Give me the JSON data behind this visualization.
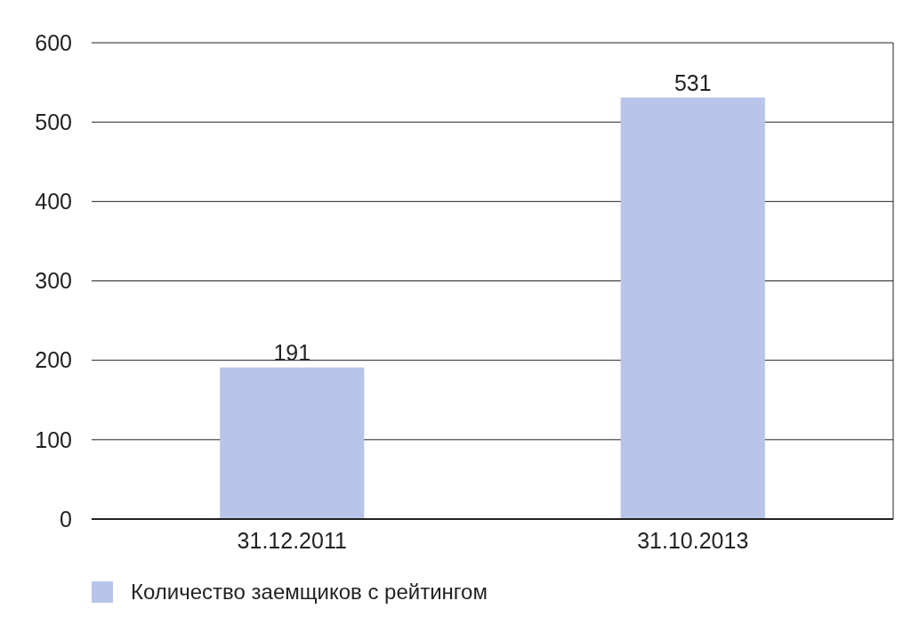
{
  "chart_data": {
    "type": "bar",
    "categories": [
      "31.12.2011",
      "31.10.2013"
    ],
    "series": [
      {
        "name": "Количество заемщиков с рейтингом",
        "color": "#b8c4e8",
        "values": [
          191,
          531
        ]
      }
    ],
    "ylim": [
      0,
      600
    ],
    "yticks": [
      0,
      100,
      200,
      300,
      400,
      500,
      600
    ],
    "grid": "y",
    "data_labels": true,
    "legend": "bottom left"
  }
}
